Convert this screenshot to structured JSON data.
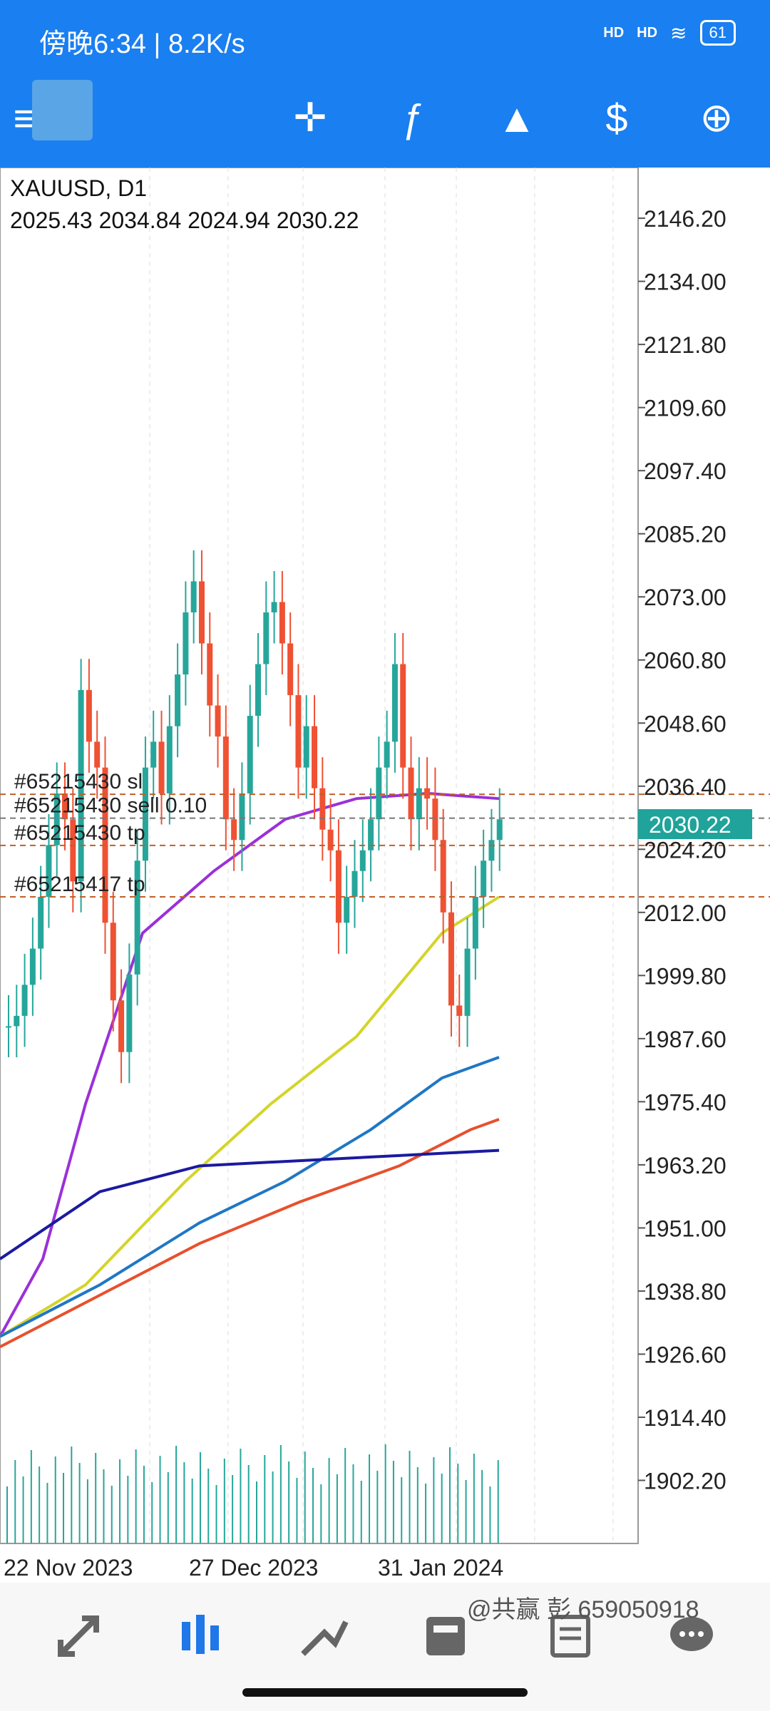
{
  "status_bar": {
    "time_text": "傍晚6:34 | 8.2K/s",
    "signal_1": "HD",
    "signal_2": "HD",
    "battery": "61"
  },
  "app_bar": {
    "icons": [
      "menu-icon",
      "app-logo",
      "crosshair-icon",
      "indicators-icon",
      "objects-icon",
      "trade-icon",
      "new-order-icon"
    ]
  },
  "chart": {
    "symbol": "XAUUSD, D1",
    "ohlc": "2025.43 2034.84 2024.94 2030.22",
    "current_price": "2030.22",
    "order_labels": [
      "#65215430 sl",
      "#65215430 sell 0.10",
      "#65215430 tp",
      "#65215417 tp"
    ],
    "price_axis": [
      "2146.20",
      "2134.00",
      "2121.80",
      "2109.60",
      "2097.40",
      "2085.20",
      "2073.00",
      "2060.80",
      "2048.60",
      "2036.40",
      "2024.20",
      "2012.00",
      "1999.80",
      "1987.60",
      "1975.40",
      "1963.20",
      "1951.00",
      "1938.80",
      "1926.60",
      "1914.40",
      "1902.20"
    ],
    "date_axis": [
      "22 Nov 2023",
      "27 Dec 2023",
      "31 Jan 2024"
    ],
    "colors": {
      "bull": "#26a69a",
      "bear": "#ef5133",
      "ma_purple": "#9b30d9",
      "ma_yellow": "#d4d42a",
      "ma_blue": "#1f77c4",
      "ma_red": "#e8502d",
      "ma_navy": "#1a1aa0",
      "level": "#c0602a"
    }
  },
  "chart_data": {
    "type": "candlestick",
    "series": [
      {
        "name": "price",
        "values": [
          1990,
          1992,
          1998,
          2005,
          2015,
          2025,
          2035,
          2030,
          2018,
          2055,
          2045,
          2040,
          2010,
          1995,
          1985,
          2000,
          2022,
          2040,
          2045,
          2035,
          2048,
          2058,
          2070,
          2076,
          2064,
          2052,
          2046,
          2030,
          2026,
          2035,
          2050,
          2060,
          2070,
          2072,
          2064,
          2054,
          2040,
          2048,
          2036,
          2028,
          2024,
          2010,
          2015,
          2020,
          2024,
          2030,
          2040,
          2045,
          2060,
          2040,
          2030,
          2036,
          2034,
          2026,
          2012,
          1994,
          1992,
          2005,
          2015,
          2022,
          2026,
          2030
        ]
      }
    ],
    "ylim": [
      1890,
      2156
    ]
  },
  "bottom_nav": {
    "items": [
      "quotes-icon",
      "chart-icon",
      "trade-history-icon",
      "inbox-icon",
      "news-icon",
      "chat-icon"
    ]
  },
  "watermark": "@共赢 彭 659050918"
}
